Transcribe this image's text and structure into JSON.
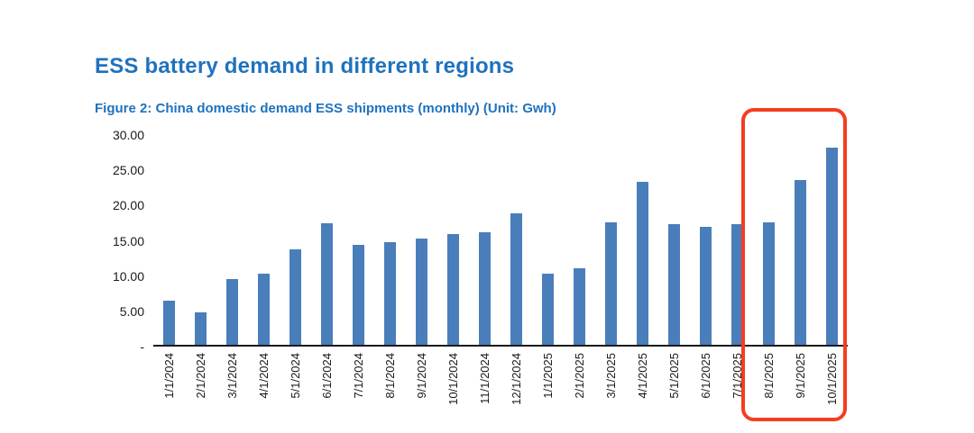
{
  "header": {
    "title": "ESS battery demand in different regions",
    "caption": "Figure 2: China domestic demand ESS shipments (monthly) (Unit: Gwh)"
  },
  "colors": {
    "title_blue": "#1f72be",
    "bar_blue": "#4a7ebb",
    "highlight_red": "#f53d20",
    "axis_black": "#1a1a1a"
  },
  "chart_data": {
    "type": "bar",
    "title": "Figure 2: China domestic demand ESS shipments (monthly) (Unit: Gwh)",
    "unit": "Gwh",
    "categories": [
      "1/1/2024",
      "2/1/2024",
      "3/1/2024",
      "4/1/2024",
      "5/1/2024",
      "6/1/2024",
      "7/1/2024",
      "8/1/2024",
      "9/1/2024",
      "10/1/2024",
      "11/1/2024",
      "12/1/2024",
      "1/1/2025",
      "2/1/2025",
      "3/1/2025",
      "4/1/2025",
      "5/1/2025",
      "6/1/2025",
      "7/1/2025",
      "8/1/2025",
      "9/1/2025",
      "10/1/2025"
    ],
    "values": [
      6.2,
      4.6,
      9.3,
      10.1,
      13.5,
      17.2,
      14.2,
      14.6,
      15.1,
      15.7,
      16.0,
      18.7,
      10.1,
      10.8,
      17.3,
      23.1,
      17.1,
      16.7,
      17.1,
      17.3,
      23.3,
      28.0
    ],
    "ylim": [
      0,
      30
    ],
    "grid": false,
    "legend": false,
    "y_ticks": [
      {
        "label": "30.00",
        "value": 30
      },
      {
        "label": "25.00",
        "value": 25
      },
      {
        "label": "20.00",
        "value": 20
      },
      {
        "label": "15.00",
        "value": 15
      },
      {
        "label": "10.00",
        "value": 10
      },
      {
        "label": "5.00",
        "value": 5
      },
      {
        "label": "-",
        "value": 0
      }
    ],
    "bar_color": "#4a7ebb",
    "annotation": {
      "type": "highlight-box",
      "description": "red rounded rectangle around last three months",
      "start_index": 19,
      "end_index": 21,
      "color": "#f53d20"
    }
  }
}
